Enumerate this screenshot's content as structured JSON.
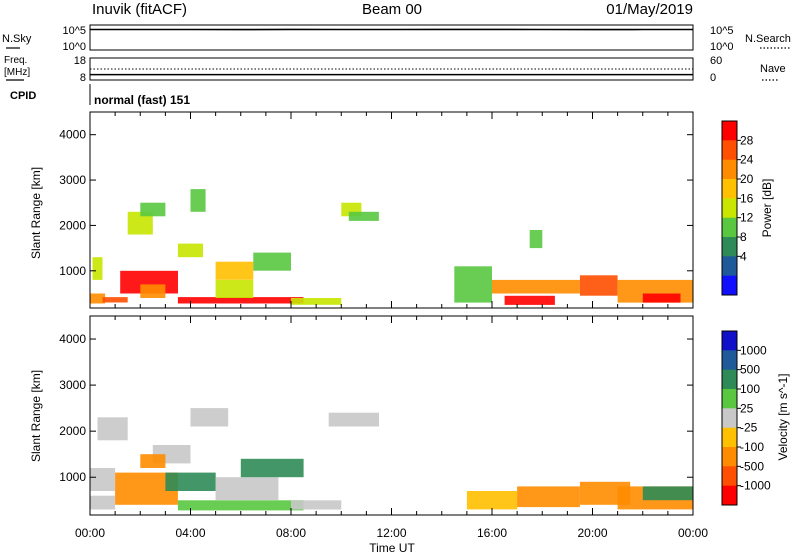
{
  "header": {
    "title": "Inuvik (fitACF)",
    "beam": "Beam 00",
    "date": "01/May/2019"
  },
  "noise_panel": {
    "left_label": "N.Sky",
    "right_label": "N.Search",
    "left_ticks": [
      "10^5",
      "10^0"
    ],
    "right_ticks": [
      "10^5",
      "10^0"
    ]
  },
  "freq_panel": {
    "left_label_1": "Freq.",
    "left_label_2": "[MHz]",
    "right_label": "Nave",
    "left_ticks": [
      "18",
      "8"
    ],
    "right_ticks": [
      "60",
      "0"
    ]
  },
  "cpid": {
    "label": "CPID",
    "value": "normal (fast) 151"
  },
  "x_axis": {
    "label": "Time UT",
    "ticks": [
      "00:00",
      "04:00",
      "08:00",
      "12:00",
      "16:00",
      "20:00",
      "00:00"
    ]
  },
  "power_colorbar": {
    "label": "Power [dB]",
    "ticks": [
      "28",
      "24",
      "20",
      "16",
      "12",
      "8",
      "4"
    ],
    "colors": [
      "#ff0000",
      "#ff4f00",
      "#ff8c00",
      "#ffc000",
      "#c8e600",
      "#59c840",
      "#2e8b57",
      "#1e5a9a",
      "#1010ff"
    ]
  },
  "velocity_colorbar": {
    "label": "Velocity [m s^-1]",
    "ticks": [
      "1000",
      "500",
      "100",
      "25",
      "-25",
      "-100",
      "-500",
      "-1000"
    ],
    "colors": [
      "#1010c8",
      "#1e5a9a",
      "#2e8b57",
      "#59c840",
      "#c8c8c8",
      "#ffc000",
      "#ff8c00",
      "#ff4f00",
      "#ff0000"
    ]
  },
  "chart_data": [
    {
      "type": "line",
      "title": "N.Sky / N.Search",
      "x_range_hours": [
        0,
        24
      ],
      "series": [
        {
          "name": "N.Sky",
          "x_hours": [
            0,
            2,
            4,
            6,
            8,
            10,
            12,
            14,
            16,
            18,
            20,
            22,
            24
          ],
          "values": [
            25000,
            26000,
            25500,
            24000,
            27000,
            26000,
            25000,
            27500,
            26500,
            25000,
            24500,
            25500,
            26000
          ]
        }
      ]
    },
    {
      "type": "line",
      "title": "Freq. / Nave",
      "x_range_hours": [
        0,
        24
      ],
      "ylim": [
        8,
        18
      ],
      "series": [
        {
          "name": "Freq.",
          "x_hours": [
            0,
            4,
            8,
            12,
            16,
            20,
            24
          ],
          "values": [
            10.2,
            10.2,
            10.2,
            10.2,
            10.2,
            10.2,
            10.2
          ]
        }
      ]
    },
    {
      "type": "heatmap",
      "title": "Power",
      "xlabel": "Time UT",
      "ylabel": "Slant Range [km]",
      "x_range_hours": [
        0,
        24
      ],
      "ylim": [
        180,
        4500
      ],
      "y_ticks": [
        1000,
        2000,
        3000,
        4000
      ],
      "cells": [
        {
          "t": [
            0.0,
            0.6
          ],
          "r": [
            280,
            500
          ],
          "v": 20
        },
        {
          "t": [
            0.5,
            1.5
          ],
          "r": [
            300,
            420
          ],
          "v": 24
        },
        {
          "t": [
            1.2,
            3.5
          ],
          "r": [
            500,
            1000
          ],
          "v": 28
        },
        {
          "t": [
            2.0,
            3.0
          ],
          "r": [
            400,
            700
          ],
          "v": 20
        },
        {
          "t": [
            3.5,
            8.5
          ],
          "r": [
            280,
            420
          ],
          "v": 30
        },
        {
          "t": [
            5.0,
            6.5
          ],
          "r": [
            800,
            1200
          ],
          "v": 16
        },
        {
          "t": [
            5.0,
            6.5
          ],
          "r": [
            400,
            800
          ],
          "v": 12
        },
        {
          "t": [
            6.5,
            8.0
          ],
          "r": [
            1000,
            1400
          ],
          "v": 10
        },
        {
          "t": [
            8.0,
            10.0
          ],
          "r": [
            250,
            400
          ],
          "v": 12
        },
        {
          "t": [
            16.5,
            18.5
          ],
          "r": [
            250,
            450
          ],
          "v": 30
        },
        {
          "t": [
            16.0,
            19.5
          ],
          "r": [
            500,
            800
          ],
          "v": 20
        },
        {
          "t": [
            19.5,
            21.0
          ],
          "r": [
            450,
            900
          ],
          "v": 26
        },
        {
          "t": [
            21.0,
            24.0
          ],
          "r": [
            300,
            800
          ],
          "v": 22
        },
        {
          "t": [
            22.0,
            23.5
          ],
          "r": [
            300,
            500
          ],
          "v": 30
        },
        {
          "t": [
            1.5,
            2.5
          ],
          "r": [
            1800,
            2300
          ],
          "v": 12
        },
        {
          "t": [
            2.0,
            3.0
          ],
          "r": [
            2200,
            2500
          ],
          "v": 10
        },
        {
          "t": [
            10.0,
            10.8
          ],
          "r": [
            2200,
            2500
          ],
          "v": 12
        },
        {
          "t": [
            10.3,
            11.5
          ],
          "r": [
            2100,
            2300
          ],
          "v": 8
        },
        {
          "t": [
            3.5,
            4.5
          ],
          "r": [
            1300,
            1600
          ],
          "v": 12
        },
        {
          "t": [
            4.0,
            4.6
          ],
          "r": [
            2300,
            2800
          ],
          "v": 8
        },
        {
          "t": [
            14.5,
            16.0
          ],
          "r": [
            300,
            1100
          ],
          "v": 8
        },
        {
          "t": [
            17.5,
            18.0
          ],
          "r": [
            1500,
            1900
          ],
          "v": 8
        },
        {
          "t": [
            0.1,
            0.5
          ],
          "r": [
            800,
            1300
          ],
          "v": 12
        }
      ]
    },
    {
      "type": "heatmap",
      "title": "Velocity",
      "xlabel": "Time UT",
      "ylabel": "Slant Range [km]",
      "x_range_hours": [
        0,
        24
      ],
      "ylim": [
        180,
        4500
      ],
      "y_ticks": [
        1000,
        2000,
        3000,
        4000
      ],
      "cells": [
        {
          "t": [
            0.0,
            1.0
          ],
          "r": [
            300,
            600
          ],
          "v": 0
        },
        {
          "t": [
            0.0,
            1.0
          ],
          "r": [
            700,
            1200
          ],
          "v": 20
        },
        {
          "t": [
            0.3,
            1.5
          ],
          "r": [
            1800,
            2300
          ],
          "v": 0
        },
        {
          "t": [
            1.0,
            3.5
          ],
          "r": [
            400,
            1100
          ],
          "v": -500
        },
        {
          "t": [
            3.0,
            5.0
          ],
          "r": [
            700,
            1100
          ],
          "v": 200
        },
        {
          "t": [
            2.5,
            4.0
          ],
          "r": [
            1300,
            1700
          ],
          "v": 0
        },
        {
          "t": [
            4.0,
            5.5
          ],
          "r": [
            2100,
            2500
          ],
          "v": 0
        },
        {
          "t": [
            3.5,
            8.5
          ],
          "r": [
            280,
            500
          ],
          "v": 50
        },
        {
          "t": [
            5.0,
            7.5
          ],
          "r": [
            500,
            1000
          ],
          "v": 0
        },
        {
          "t": [
            6.0,
            8.5
          ],
          "r": [
            1000,
            1400
          ],
          "v": 200
        },
        {
          "t": [
            8.0,
            10.0
          ],
          "r": [
            300,
            500
          ],
          "v": 20
        },
        {
          "t": [
            9.5,
            11.5
          ],
          "r": [
            2100,
            2400
          ],
          "v": 0
        },
        {
          "t": [
            15.0,
            17.0
          ],
          "r": [
            300,
            700
          ],
          "v": -50
        },
        {
          "t": [
            17.0,
            19.5
          ],
          "r": [
            350,
            800
          ],
          "v": -200
        },
        {
          "t": [
            19.5,
            21.5
          ],
          "r": [
            400,
            900
          ],
          "v": -500
        },
        {
          "t": [
            21.0,
            24.0
          ],
          "r": [
            300,
            800
          ],
          "v": -200
        },
        {
          "t": [
            22.0,
            24.0
          ],
          "r": [
            500,
            800
          ],
          "v": 200
        },
        {
          "t": [
            2.0,
            3.0
          ],
          "r": [
            1200,
            1500
          ],
          "v": -500
        }
      ]
    }
  ]
}
